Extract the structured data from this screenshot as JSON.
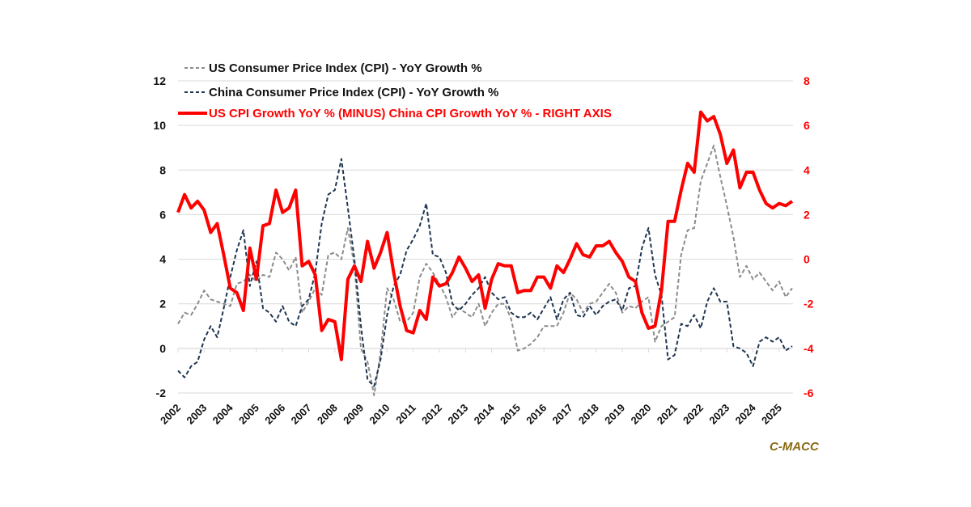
{
  "chart_data": {
    "type": "line",
    "title": "",
    "credit": "C-MACC",
    "colors": {
      "us": "#8c8c8c",
      "china": "#1f3550",
      "spread": "#ff0000",
      "grid": "#d9d9d9",
      "credit": "#8b6914"
    },
    "legend_placement": "top-left",
    "legend": [
      {
        "key": "us",
        "label": "US Consumer Price Index (CPI) - YoY Growth %",
        "style": "dashed",
        "color": "#8c8c8c"
      },
      {
        "key": "china",
        "label": "China Consumer Price Index (CPI) - YoY Growth %",
        "style": "dashed",
        "color": "#1f3550"
      },
      {
        "key": "spread",
        "label": "US CPI Growth YoY % (MINUS) China CPI Growth YoY % - RIGHT AXIS",
        "style": "solid",
        "color": "#ff0000"
      }
    ],
    "left_axis": {
      "min": -2,
      "max": 12,
      "ticks": [
        "12",
        "10",
        "8",
        "6",
        "4",
        "2",
        "0",
        "-2"
      ],
      "tick_values": [
        12,
        10,
        8,
        6,
        4,
        2,
        0,
        -2
      ]
    },
    "right_axis": {
      "min": -6,
      "max": 8,
      "ticks": [
        "8",
        "6",
        "4",
        "2",
        "0",
        "-2",
        "-4",
        "-6"
      ],
      "tick_values": [
        8,
        6,
        4,
        2,
        0,
        -2,
        -4,
        -6
      ]
    },
    "x_axis": {
      "start": 2002.0,
      "end": 2025.5,
      "ticks": [
        "2002",
        "2003",
        "2004",
        "2005",
        "2006",
        "2007",
        "2008",
        "2009",
        "2010",
        "2011",
        "2012",
        "2013",
        "2014",
        "2015",
        "2016",
        "2017",
        "2018",
        "2019",
        "2020",
        "2021",
        "2022",
        "2023",
        "2024",
        "2025"
      ]
    },
    "grid": true,
    "x": [
      2002.0,
      2002.25,
      2002.5,
      2002.75,
      2003.0,
      2003.25,
      2003.5,
      2003.75,
      2004.0,
      2004.25,
      2004.5,
      2004.75,
      2005.0,
      2005.25,
      2005.5,
      2005.75,
      2006.0,
      2006.25,
      2006.5,
      2006.75,
      2007.0,
      2007.25,
      2007.5,
      2007.75,
      2008.0,
      2008.25,
      2008.5,
      2008.75,
      2009.0,
      2009.25,
      2009.5,
      2009.75,
      2010.0,
      2010.25,
      2010.5,
      2010.75,
      2011.0,
      2011.25,
      2011.5,
      2011.75,
      2012.0,
      2012.25,
      2012.5,
      2012.75,
      2013.0,
      2013.25,
      2013.5,
      2013.75,
      2014.0,
      2014.25,
      2014.5,
      2014.75,
      2015.0,
      2015.25,
      2015.5,
      2015.75,
      2016.0,
      2016.25,
      2016.5,
      2016.75,
      2017.0,
      2017.25,
      2017.5,
      2017.75,
      2018.0,
      2018.25,
      2018.5,
      2018.75,
      2019.0,
      2019.25,
      2019.5,
      2019.75,
      2020.0,
      2020.25,
      2020.5,
      2020.75,
      2021.0,
      2021.25,
      2021.5,
      2021.75,
      2022.0,
      2022.25,
      2022.5,
      2022.75,
      2023.0,
      2023.25,
      2023.5,
      2023.75,
      2024.0,
      2024.25,
      2024.5,
      2024.75,
      2025.0,
      2025.25,
      2025.5
    ],
    "series": [
      {
        "name": "US Consumer Price Index (CPI) - YoY Growth %",
        "axis": "left",
        "values": [
          1.1,
          1.6,
          1.5,
          2.0,
          2.6,
          2.2,
          2.1,
          2.0,
          1.9,
          2.9,
          3.0,
          3.3,
          3.0,
          3.3,
          3.2,
          4.3,
          4.0,
          3.5,
          4.1,
          1.6,
          2.1,
          2.7,
          2.4,
          4.2,
          4.3,
          4.0,
          5.4,
          3.7,
          0.0,
          -0.6,
          -2.1,
          -0.2,
          2.7,
          2.2,
          1.2,
          1.2,
          1.6,
          3.2,
          3.8,
          3.4,
          2.9,
          2.3,
          1.4,
          1.8,
          1.6,
          1.4,
          2.0,
          1.0,
          1.6,
          2.0,
          2.0,
          1.3,
          -0.1,
          0.0,
          0.2,
          0.5,
          1.0,
          1.0,
          1.0,
          1.6,
          2.5,
          2.2,
          1.6,
          2.0,
          2.1,
          2.5,
          2.9,
          2.5,
          1.6,
          1.9,
          1.8,
          2.1,
          2.3,
          0.3,
          1.0,
          1.2,
          1.4,
          4.2,
          5.3,
          5.4,
          7.5,
          8.3,
          9.1,
          7.7,
          6.4,
          5.0,
          3.2,
          3.7,
          3.1,
          3.4,
          3.0,
          2.6,
          3.0,
          2.3,
          2.7
        ]
      },
      {
        "name": "China Consumer Price Index (CPI) - YoY Growth %",
        "axis": "left",
        "values": [
          -1.0,
          -1.3,
          -0.8,
          -0.6,
          0.4,
          1.0,
          0.5,
          1.8,
          3.2,
          4.4,
          5.3,
          2.8,
          3.9,
          1.8,
          1.6,
          1.2,
          1.9,
          1.2,
          1.0,
          1.9,
          2.2,
          3.4,
          5.6,
          6.9,
          7.1,
          8.5,
          6.3,
          4.0,
          1.0,
          -1.4,
          -1.7,
          -0.5,
          1.5,
          2.8,
          3.3,
          4.4,
          4.9,
          5.5,
          6.5,
          4.2,
          4.1,
          3.4,
          2.0,
          1.7,
          2.0,
          2.4,
          2.7,
          3.2,
          2.5,
          2.2,
          2.3,
          1.6,
          1.4,
          1.4,
          1.6,
          1.3,
          1.8,
          2.3,
          1.3,
          2.2,
          2.5,
          1.5,
          1.4,
          1.9,
          1.5,
          1.9,
          2.1,
          2.2,
          1.7,
          2.7,
          2.8,
          4.5,
          5.4,
          3.3,
          2.4,
          -0.5,
          -0.3,
          1.1,
          1.0,
          1.5,
          0.9,
          2.1,
          2.7,
          2.1,
          2.1,
          0.1,
          0.0,
          -0.2,
          -0.8,
          0.3,
          0.5,
          0.3,
          0.5,
          -0.1,
          0.1
        ]
      },
      {
        "name": "US CPI Growth YoY % (MINUS) China CPI Growth YoY % - RIGHT AXIS",
        "axis": "right",
        "values": [
          2.1,
          2.9,
          2.3,
          2.6,
          2.2,
          1.2,
          1.6,
          0.2,
          -1.3,
          -1.5,
          -2.3,
          0.5,
          -0.9,
          1.5,
          1.6,
          3.1,
          2.1,
          2.3,
          3.1,
          -0.3,
          -0.1,
          -0.7,
          -3.2,
          -2.7,
          -2.8,
          -4.5,
          -0.9,
          -0.3,
          -1.0,
          0.8,
          -0.4,
          0.3,
          1.2,
          -0.6,
          -2.1,
          -3.2,
          -3.3,
          -2.3,
          -2.7,
          -0.8,
          -1.2,
          -1.1,
          -0.6,
          0.1,
          -0.4,
          -1.0,
          -0.7,
          -2.2,
          -0.9,
          -0.2,
          -0.3,
          -0.3,
          -1.5,
          -1.4,
          -1.4,
          -0.8,
          -0.8,
          -1.3,
          -0.3,
          -0.6,
          0.0,
          0.7,
          0.2,
          0.1,
          0.6,
          0.6,
          0.8,
          0.3,
          -0.1,
          -0.8,
          -1.0,
          -2.4,
          -3.1,
          -3.0,
          -1.4,
          1.7,
          1.7,
          3.1,
          4.3,
          3.9,
          6.6,
          6.2,
          6.4,
          5.6,
          4.3,
          4.9,
          3.2,
          3.9,
          3.9,
          3.1,
          2.5,
          2.3,
          2.5,
          2.4,
          2.6
        ]
      }
    ]
  }
}
